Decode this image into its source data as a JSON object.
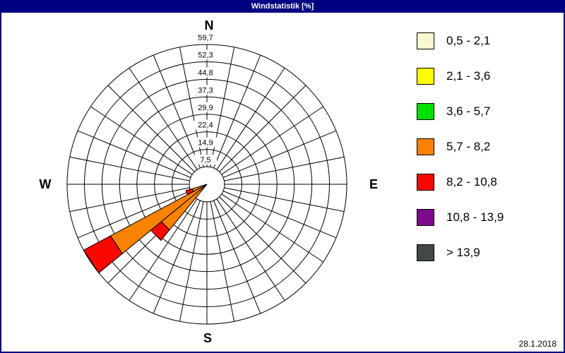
{
  "window": {
    "title": "Windstatistik [%]",
    "date": "28.1.2018"
  },
  "compass": {
    "north": "N",
    "east": "E",
    "south": "S",
    "west": "W"
  },
  "legend": {
    "items": [
      {
        "label": "0,5 - 2,1",
        "color": "#FBF8D0"
      },
      {
        "label": "2,1 - 3,6",
        "color": "#FFFF00"
      },
      {
        "label": "3,6 - 5,7",
        "color": "#00E000"
      },
      {
        "label": "5,7 - 8,2",
        "color": "#F98200"
      },
      {
        "label": "8,2 - 10,8",
        "color": "#F80800"
      },
      {
        "label": "10,8 - 13,9",
        "color": "#7D0A8C"
      },
      {
        "label": "> 13,9",
        "color": "#404848"
      }
    ]
  },
  "chart_data": {
    "type": "wind-rose",
    "title": "Windstatistik [%]",
    "unit": "%",
    "sectors": 32,
    "sector_width_deg": 11.25,
    "axis_max": 59.7,
    "rings": [
      7.5,
      14.9,
      22.4,
      29.9,
      37.3,
      44.8,
      52.3,
      59.7
    ],
    "ring_labels": [
      "7,5",
      "14,9",
      "22,4",
      "29,9",
      "37,3",
      "44,8",
      "52,3",
      "59,7"
    ],
    "grid_color": "#000000",
    "legend_position": "right",
    "bars": [
      {
        "direction_deg": 225,
        "direction_name": "SW",
        "total": 31.0,
        "segments": [
          {
            "speed_class": "5,7 - 8,2",
            "color": "#F98200",
            "from": 0,
            "to": 25.2
          },
          {
            "speed_class": "8,2 - 10,8",
            "color": "#F80800",
            "from": 25.2,
            "to": 31.0
          }
        ]
      },
      {
        "direction_deg": 236.25,
        "direction_name": "WSW-SW",
        "total": 59.7,
        "segments": [
          {
            "speed_class": "5,7 - 8,2",
            "color": "#F98200",
            "from": 0,
            "to": 46.7
          },
          {
            "speed_class": "8,2 - 10,8",
            "color": "#F80800",
            "from": 46.7,
            "to": 59.7
          }
        ]
      },
      {
        "direction_deg": 247.5,
        "direction_name": "WSW",
        "total": 9.4,
        "segments": [
          {
            "speed_class": "5,7 - 8,2",
            "color": "#F98200",
            "from": 0,
            "to": 6.6
          },
          {
            "speed_class": "8,2 - 10,8",
            "color": "#F80800",
            "from": 6.6,
            "to": 9.4
          }
        ]
      }
    ]
  }
}
